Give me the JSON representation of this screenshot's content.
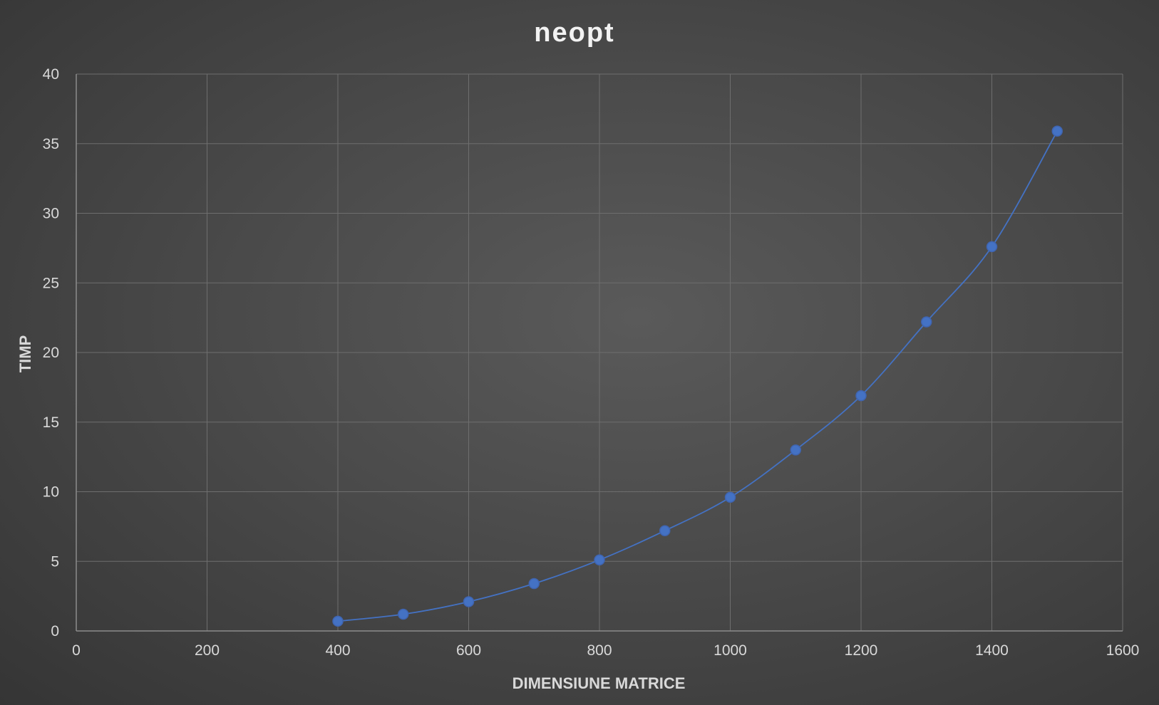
{
  "chart_data": {
    "type": "scatter",
    "title": "neopt",
    "xlabel": "DIMENSIUNE MATRICE",
    "ylabel": "TIMP",
    "xlim": [
      0,
      1600
    ],
    "ylim": [
      0,
      40
    ],
    "xticks": [
      0,
      200,
      400,
      600,
      800,
      1000,
      1200,
      1400,
      1600
    ],
    "yticks": [
      0,
      5,
      10,
      15,
      20,
      25,
      30,
      35,
      40
    ],
    "grid": true,
    "legend": "none",
    "line_style": "smooth-with-markers",
    "series": [
      {
        "color": "#4472c4",
        "x": [
          400,
          500,
          600,
          700,
          800,
          900,
          1000,
          1100,
          1200,
          1300,
          1400,
          1500
        ],
        "y": [
          0.7,
          1.2,
          2.1,
          3.4,
          5.1,
          7.2,
          9.6,
          13.0,
          16.9,
          22.2,
          27.6,
          35.9
        ]
      }
    ]
  }
}
